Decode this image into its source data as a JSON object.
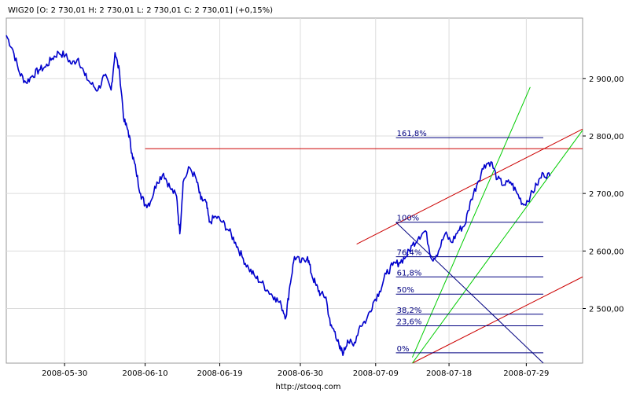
{
  "chart_data": {
    "type": "line",
    "title": "WIG20 [O: 2 730,01  H: 2 730,01  L: 2 730,01  C: 2 730,01] (+0,15%)",
    "footer": "http://stooq.com",
    "xlabel": "",
    "ylabel": "",
    "x_ticks": [
      "2008-05-30",
      "2008-06-10",
      "2008-06-19",
      "2008-06-30",
      "2008-07-09",
      "2008-07-18",
      "2008-07-29"
    ],
    "y_ticks": [
      2500,
      2600,
      2700,
      2800,
      2900
    ],
    "y_tick_labels": [
      "2 500,00",
      "2 600,00",
      "2 700,00",
      "2 800,00",
      "2 900,00"
    ],
    "ylim": [
      2405,
      3005
    ],
    "grid": true,
    "series": [
      {
        "color": "#0000cc",
        "points": [
          [
            0.0,
            2975
          ],
          [
            1.0,
            2950
          ],
          [
            2.0,
            2910
          ],
          [
            3.0,
            2893
          ],
          [
            4.0,
            2905
          ],
          [
            5.0,
            2915
          ],
          [
            6.0,
            2920
          ],
          [
            7.0,
            2935
          ],
          [
            8.0,
            2945
          ],
          [
            9.0,
            2940
          ],
          [
            10.0,
            2925
          ],
          [
            11.0,
            2935
          ],
          [
            12.0,
            2905
          ],
          [
            13.0,
            2890
          ],
          [
            14.0,
            2880
          ],
          [
            15.0,
            2905
          ],
          [
            16.0,
            2880
          ],
          [
            16.6,
            2945
          ],
          [
            17.3,
            2910
          ],
          [
            18.0,
            2825
          ],
          [
            18.6,
            2810
          ],
          [
            19.2,
            2770
          ],
          [
            19.8,
            2740
          ],
          [
            20.5,
            2700
          ],
          [
            21.2,
            2680
          ],
          [
            22.0,
            2685
          ],
          [
            23.0,
            2720
          ],
          [
            24.0,
            2735
          ],
          [
            25.0,
            2710
          ],
          [
            26.0,
            2695
          ],
          [
            26.5,
            2630
          ],
          [
            27.0,
            2720
          ],
          [
            28.0,
            2745
          ],
          [
            29.0,
            2725
          ],
          [
            29.7,
            2690
          ],
          [
            30.5,
            2685
          ],
          [
            31.0,
            2650
          ],
          [
            32.0,
            2660
          ],
          [
            33.0,
            2650
          ],
          [
            34.0,
            2635
          ],
          [
            35.0,
            2615
          ],
          [
            36.0,
            2590
          ],
          [
            37.0,
            2570
          ],
          [
            38.0,
            2555
          ],
          [
            39.0,
            2545
          ],
          [
            40.0,
            2530
          ],
          [
            41.0,
            2520
          ],
          [
            42.0,
            2505
          ],
          [
            42.7,
            2485
          ],
          [
            43.3,
            2540
          ],
          [
            44.0,
            2590
          ],
          [
            45.0,
            2580
          ],
          [
            46.0,
            2590
          ],
          [
            46.6,
            2560
          ],
          [
            47.3,
            2540
          ],
          [
            48.0,
            2525
          ],
          [
            48.8,
            2520
          ],
          [
            49.5,
            2470
          ],
          [
            50.2,
            2460
          ],
          [
            50.9,
            2430
          ],
          [
            51.5,
            2423
          ],
          [
            52.1,
            2445
          ],
          [
            53.0,
            2435
          ],
          [
            54.0,
            2470
          ],
          [
            55.0,
            2480
          ],
          [
            56.0,
            2510
          ],
          [
            57.0,
            2530
          ],
          [
            58.0,
            2560
          ],
          [
            59.0,
            2575
          ],
          [
            60.0,
            2580
          ],
          [
            61.0,
            2590
          ],
          [
            62.0,
            2610
          ],
          [
            63.0,
            2625
          ],
          [
            64.0,
            2635
          ],
          [
            65.0,
            2585
          ],
          [
            66.0,
            2600
          ],
          [
            67.0,
            2630
          ],
          [
            68.0,
            2615
          ],
          [
            69.0,
            2635
          ],
          [
            70.0,
            2645
          ],
          [
            71.0,
            2690
          ],
          [
            72.0,
            2720
          ],
          [
            73.0,
            2750
          ],
          [
            74.0,
            2755
          ],
          [
            75.0,
            2725
          ],
          [
            76.0,
            2715
          ],
          [
            77.0,
            2720
          ],
          [
            78.0,
            2700
          ],
          [
            79.0,
            2680
          ],
          [
            80.0,
            2695
          ],
          [
            81.0,
            2715
          ],
          [
            82.0,
            2735
          ],
          [
            83.0,
            2730
          ]
        ]
      }
    ],
    "overlays": [
      {
        "kind": "line",
        "color": "#cc0000",
        "from": [
          21.2,
          2778
        ],
        "to": [
          88.0,
          2778
        ]
      },
      {
        "kind": "line",
        "color": "#cc0000",
        "from": [
          53.5,
          2612
        ],
        "to": [
          88.0,
          2812
        ]
      },
      {
        "kind": "line",
        "color": "#cc0000",
        "from": [
          62.0,
          2405
        ],
        "to": [
          88.0,
          2555
        ]
      },
      {
        "kind": "line",
        "color": "#00cc00",
        "from": [
          62.0,
          2415
        ],
        "to": [
          80.0,
          2885
        ]
      },
      {
        "kind": "line",
        "color": "#00cc00",
        "from": [
          62.0,
          2405
        ],
        "to": [
          88.0,
          2810
        ]
      },
      {
        "kind": "line",
        "color": "#000080",
        "from": [
          59.5,
          2650
        ],
        "to": [
          82.0,
          2405
        ]
      }
    ],
    "fibonacci": {
      "color": "#000080",
      "x_start": 59.5,
      "x_end": 82.0,
      "levels": [
        {
          "label": "0%",
          "value": 2423
        },
        {
          "label": "23,6%",
          "value": 2470
        },
        {
          "label": "38,2%",
          "value": 2490
        },
        {
          "label": "50%",
          "value": 2525
        },
        {
          "label": "61,8%",
          "value": 2555
        },
        {
          "label": "76,4%",
          "value": 2590
        },
        {
          "label": "100%",
          "value": 2650
        },
        {
          "label": "161,8%",
          "value": 2797
        }
      ]
    }
  }
}
